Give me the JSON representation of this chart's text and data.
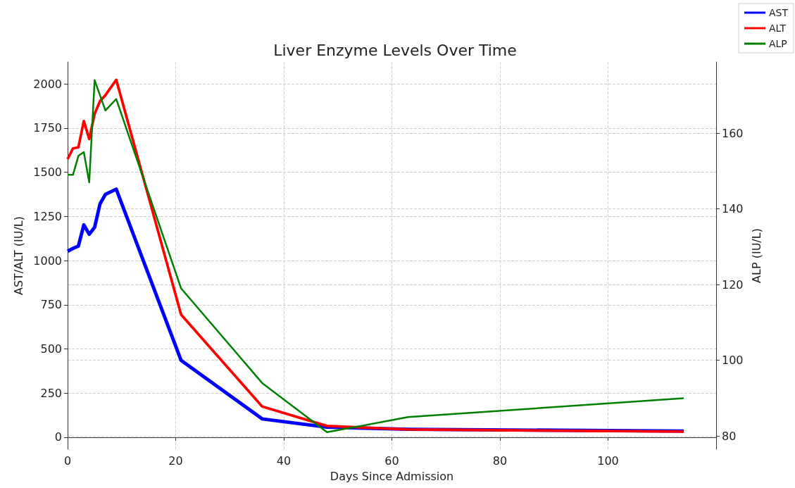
{
  "chart_data": {
    "type": "line",
    "title": "Liver Enzyme Levels Over Time",
    "xlabel": "Days Since Admission",
    "ylabel": "AST/ALT (IU/L)",
    "y2label": "ALP (IU/L)",
    "x": [
      0,
      1,
      2,
      3,
      4,
      5,
      6,
      7,
      9,
      21,
      36,
      48,
      63,
      114
    ],
    "series": [
      {
        "name": "AST",
        "color": "#0000ff",
        "values": [
          1053,
          1069,
          1082,
          1202,
          1149,
          1188,
          1321,
          1375,
          1404,
          435,
          104,
          57,
          45,
          35
        ]
      },
      {
        "name": "ALT",
        "color": "#ff0000",
        "values": [
          1574,
          1635,
          1641,
          1790,
          1688,
          1830,
          1903,
          1936,
          2023,
          694,
          174,
          64,
          44,
          32
        ]
      },
      {
        "name": "ALP",
        "color": "#008000",
        "axis": "y2",
        "values": [
          149,
          149,
          154,
          155,
          147,
          174,
          170,
          166,
          169,
          119,
          94,
          81,
          85,
          90
        ]
      }
    ],
    "xlim": [
      0,
      120
    ],
    "xticks": [
      0,
      20,
      40,
      60,
      80,
      100
    ],
    "ylim": [
      -68,
      2124
    ],
    "yticks": [
      0,
      250,
      500,
      750,
      1000,
      1250,
      1500,
      1750,
      2000
    ],
    "y2lim": [
      76.5,
      178.8
    ],
    "y2ticks": [
      80,
      100,
      120,
      140,
      160
    ],
    "grid": true,
    "legend": "top right",
    "marker": "none",
    "line_style": "solid"
  }
}
